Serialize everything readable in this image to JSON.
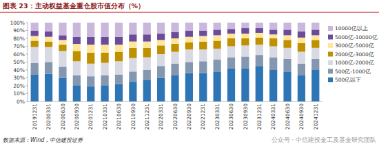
{
  "chart_data": {
    "type": "bar",
    "title": "图表 23：主动权益基金重仓股市值分布（%）",
    "source": "数据来源：Wind，中信建投证券",
    "watermark": "公众号 · 中信建投金工及基金研究团队",
    "stacked": true,
    "grid": false,
    "legend": "right",
    "categories": [
      "20191231",
      "20200331",
      "20200630",
      "20200930",
      "20201231",
      "20210331",
      "20210630",
      "20210930",
      "20211231",
      "20220331",
      "20220630",
      "20220930",
      "20221231",
      "20230331",
      "20230630",
      "20230930",
      "20231231",
      "20240331",
      "20240630",
      "20240930",
      "20241231"
    ],
    "ylim": [
      0,
      100
    ],
    "yticks": [
      {
        "value": 0,
        "label": "0%"
      },
      {
        "value": 10,
        "label": "10%"
      },
      {
        "value": 20,
        "label": "20%"
      },
      {
        "value": 30,
        "label": "30%"
      },
      {
        "value": 40,
        "label": "40%"
      },
      {
        "value": 50,
        "label": "50%"
      },
      {
        "value": 60,
        "label": "60%"
      },
      {
        "value": 70,
        "label": "70%"
      },
      {
        "value": 80,
        "label": "80%"
      },
      {
        "value": 90,
        "label": "90%"
      },
      {
        "value": 100,
        "label": "100%"
      }
    ],
    "series": [
      {
        "name": "500亿以下",
        "color": "#2e75b6",
        "values": [
          34,
          35,
          30,
          20,
          19,
          20,
          22,
          25,
          27,
          30,
          33,
          36,
          36,
          38,
          42,
          42,
          45,
          40,
          38,
          33,
          40
        ]
      },
      {
        "name": "500亿-1000亿",
        "color": "#8497b0",
        "values": [
          15,
          15,
          14,
          13,
          13,
          13,
          12,
          13,
          13,
          15,
          15,
          14,
          15,
          15,
          14,
          15,
          14,
          16,
          16,
          15,
          14
        ]
      },
      {
        "name": "1000亿-2000亿",
        "color": "#d9d9e3",
        "values": [
          20,
          19,
          20,
          18,
          16,
          16,
          17,
          17,
          16,
          15,
          15,
          16,
          15,
          14,
          14,
          14,
          13,
          14,
          14,
          15,
          14
        ]
      },
      {
        "name": "2000亿-3000亿",
        "color": "#bf9000",
        "values": [
          8,
          7,
          8,
          13,
          14,
          13,
          12,
          13,
          12,
          11,
          10,
          9,
          10,
          10,
          10,
          9,
          9,
          10,
          10,
          11,
          10
        ]
      },
      {
        "name": "3000亿-5000亿",
        "color": "#ffe699",
        "values": [
          6,
          6,
          6,
          9,
          10,
          10,
          9,
          8,
          8,
          7,
          7,
          7,
          7,
          7,
          6,
          6,
          6,
          5,
          6,
          7,
          6
        ]
      },
      {
        "name": "5000亿-10000亿",
        "color": "#6b4c9a",
        "values": [
          7,
          7,
          6,
          9,
          10,
          10,
          10,
          9,
          9,
          8,
          8,
          8,
          7,
          7,
          6,
          7,
          6,
          6,
          7,
          8,
          7
        ]
      },
      {
        "name": "10000亿以上",
        "color": "#c9b8dc",
        "values": [
          10,
          11,
          16,
          18,
          18,
          18,
          18,
          15,
          15,
          14,
          12,
          10,
          10,
          9,
          8,
          7,
          7,
          9,
          9,
          11,
          9
        ]
      }
    ]
  }
}
